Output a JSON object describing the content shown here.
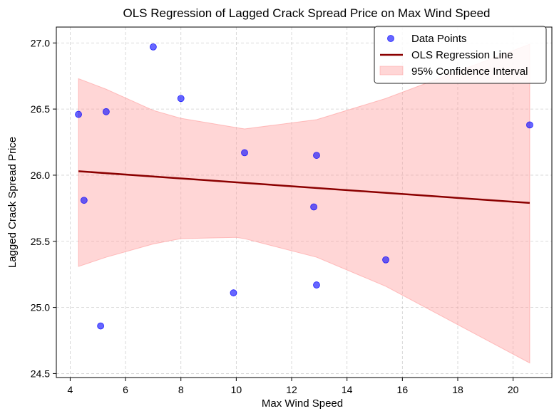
{
  "chart_data": {
    "type": "scatter",
    "title": "OLS Regression of Lagged Crack Spread Price on Max Wind Speed",
    "xlabel": "Max Wind Speed",
    "ylabel": "Lagged Crack Spread Price",
    "xlim": [
      3.5,
      21.4
    ],
    "ylim": [
      24.47,
      27.12
    ],
    "xticks": [
      4,
      6,
      8,
      10,
      12,
      14,
      16,
      18,
      20
    ],
    "yticks": [
      24.5,
      25.0,
      25.5,
      26.0,
      26.5,
      27.0
    ],
    "grid": true,
    "legend_position": "top-right",
    "legend": {
      "points": "Data Points",
      "line": "OLS Regression Line",
      "band": "95% Confidence Interval"
    },
    "colors": {
      "points": "#0000ff",
      "line": "#8b0000",
      "band": "#ff9999"
    },
    "series": [
      {
        "name": "Data Points",
        "kind": "scatter",
        "points": [
          {
            "x": 4.3,
            "y": 26.46
          },
          {
            "x": 4.5,
            "y": 25.81
          },
          {
            "x": 5.1,
            "y": 24.86
          },
          {
            "x": 5.3,
            "y": 26.48
          },
          {
            "x": 7.0,
            "y": 26.97
          },
          {
            "x": 8.0,
            "y": 26.58
          },
          {
            "x": 9.9,
            "y": 25.11
          },
          {
            "x": 10.3,
            "y": 26.17
          },
          {
            "x": 12.8,
            "y": 25.76
          },
          {
            "x": 12.9,
            "y": 25.17
          },
          {
            "x": 12.9,
            "y": 26.15
          },
          {
            "x": 15.4,
            "y": 25.36
          },
          {
            "x": 20.6,
            "y": 26.38
          }
        ]
      },
      {
        "name": "OLS Regression Line",
        "kind": "line",
        "points": [
          {
            "x": 4.3,
            "y": 26.03
          },
          {
            "x": 20.6,
            "y": 25.79
          }
        ]
      },
      {
        "name": "95% Confidence Interval",
        "kind": "band",
        "x": [
          4.3,
          5.3,
          7.0,
          8.0,
          10.0,
          10.3,
          12.9,
          15.4,
          20.6
        ],
        "upper": [
          26.73,
          26.65,
          26.49,
          26.43,
          26.36,
          26.35,
          26.42,
          26.58,
          26.99
        ],
        "lower": [
          25.31,
          25.38,
          25.48,
          25.52,
          25.53,
          25.52,
          25.38,
          25.16,
          24.58
        ]
      }
    ]
  }
}
